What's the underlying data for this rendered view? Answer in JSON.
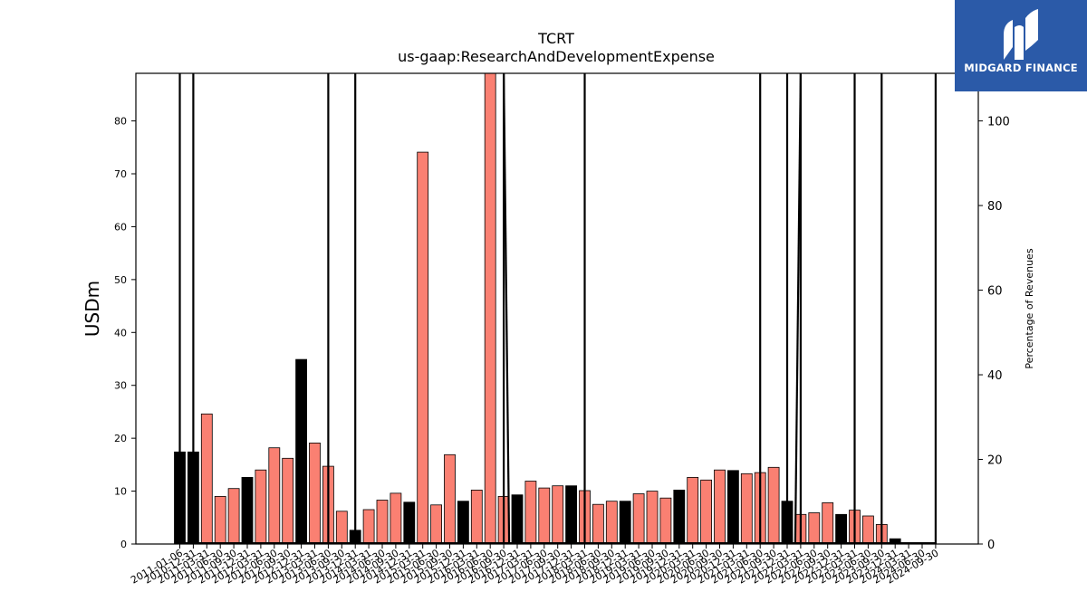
{
  "chart_data": {
    "type": "bar",
    "title": "TCRT",
    "subtitle": "us-gaap:ResearchAndDevelopmentExpense",
    "ylabel": "USDm",
    "ylabel_right": "Percentage of Revenues",
    "ylim": [
      0,
      89
    ],
    "ylim_right": [
      0,
      111.25
    ],
    "yticks": [
      0,
      10,
      20,
      30,
      40,
      50,
      60,
      70,
      80
    ],
    "yticks_right": [
      0,
      20,
      40,
      60,
      80,
      100
    ],
    "grid": false,
    "legend": "none",
    "colors": {
      "annual": "#000000",
      "quarterly": "#fa8072",
      "line": "#000000"
    },
    "categories": [
      "2011-01-06",
      "2010-12-31",
      "2011-03-31",
      "2011-06-30",
      "2011-09-30",
      "2011-12-31",
      "2012-03-31",
      "2012-06-30",
      "2012-09-30",
      "2012-12-31",
      "2013-03-31",
      "2013-06-30",
      "2013-09-30",
      "2013-12-31",
      "2014-03-31",
      "2014-06-30",
      "2014-09-30",
      "2014-12-31",
      "2015-03-31",
      "2015-06-30",
      "2015-09-30",
      "2015-12-31",
      "2016-03-31",
      "2016-06-30",
      "2016-09-30",
      "2016-12-31",
      "2017-03-31",
      "2017-06-30",
      "2017-09-30",
      "2017-12-31",
      "2018-03-31",
      "2018-06-30",
      "2018-09-30",
      "2018-12-31",
      "2019-03-31",
      "2019-06-30",
      "2019-09-30",
      "2019-12-31",
      "2020-03-31",
      "2020-06-30",
      "2020-09-30",
      "2020-12-31",
      "2021-03-31",
      "2021-06-30",
      "2021-09-30",
      "2021-12-31",
      "2022-03-31",
      "2022-06-30",
      "2022-09-30",
      "2022-12-31",
      "2023-03-31",
      "2023-06-30",
      "2023-09-30",
      "2023-12-31",
      "2024-03-31",
      "2024-06-30",
      "2024-09-30"
    ],
    "series": [
      {
        "values": [
          17.4,
          17.4,
          24.6,
          9.0,
          10.5,
          12.6,
          14.0,
          18.2,
          16.2,
          34.9,
          19.1,
          14.7,
          6.2,
          2.6,
          6.5,
          8.3,
          9.6,
          7.9,
          74.1,
          7.4,
          16.9,
          8.1,
          10.2,
          90.0,
          9.0,
          9.3,
          11.9,
          10.6,
          11.0,
          11.0,
          10.1,
          7.5,
          8.1,
          8.1,
          9.5,
          10.0,
          8.7,
          10.2,
          12.6,
          12.1,
          14.0,
          13.9,
          13.3,
          13.5,
          14.5,
          8.1,
          5.6,
          5.9,
          7.8,
          5.6,
          6.4,
          5.3,
          3.7,
          1.0,
          0.0,
          0.0,
          0.0
        ],
        "annual": [
          true,
          true,
          false,
          false,
          false,
          true,
          false,
          false,
          false,
          true,
          false,
          false,
          false,
          true,
          false,
          false,
          false,
          true,
          false,
          false,
          false,
          true,
          false,
          false,
          false,
          true,
          false,
          false,
          false,
          true,
          false,
          false,
          false,
          true,
          false,
          false,
          false,
          true,
          false,
          false,
          false,
          true,
          false,
          false,
          false,
          true,
          false,
          false,
          false,
          true,
          false,
          false,
          false,
          true,
          false,
          false,
          false
        ]
      },
      {
        "axis": "right",
        "values": [
          160,
          160,
          null,
          null,
          null,
          null,
          null,
          null,
          null,
          null,
          null,
          160,
          null,
          160,
          null,
          null,
          null,
          null,
          null,
          null,
          null,
          null,
          null,
          null,
          160,
          null,
          null,
          null,
          null,
          null,
          null,
          160,
          null,
          null,
          null,
          null,
          null,
          null,
          null,
          null,
          null,
          null,
          null,
          160,
          null,
          160,
          null,
          160,
          null,
          160,
          null,
          160,
          null,
          null,
          null,
          null,
          160
        ],
        "drops": [
          [
            0,
            0
          ],
          [
            1,
            0
          ],
          [
            11,
            0
          ],
          [
            13,
            0
          ],
          [
            24,
            0
          ],
          [
            30,
            0
          ],
          [
            43,
            0
          ],
          [
            45,
            0
          ],
          [
            46,
            0
          ],
          [
            50,
            0
          ],
          [
            52,
            0
          ],
          [
            56,
            0
          ]
        ]
      }
    ]
  },
  "logo": {
    "text": "MIDGARD FINANCE"
  }
}
